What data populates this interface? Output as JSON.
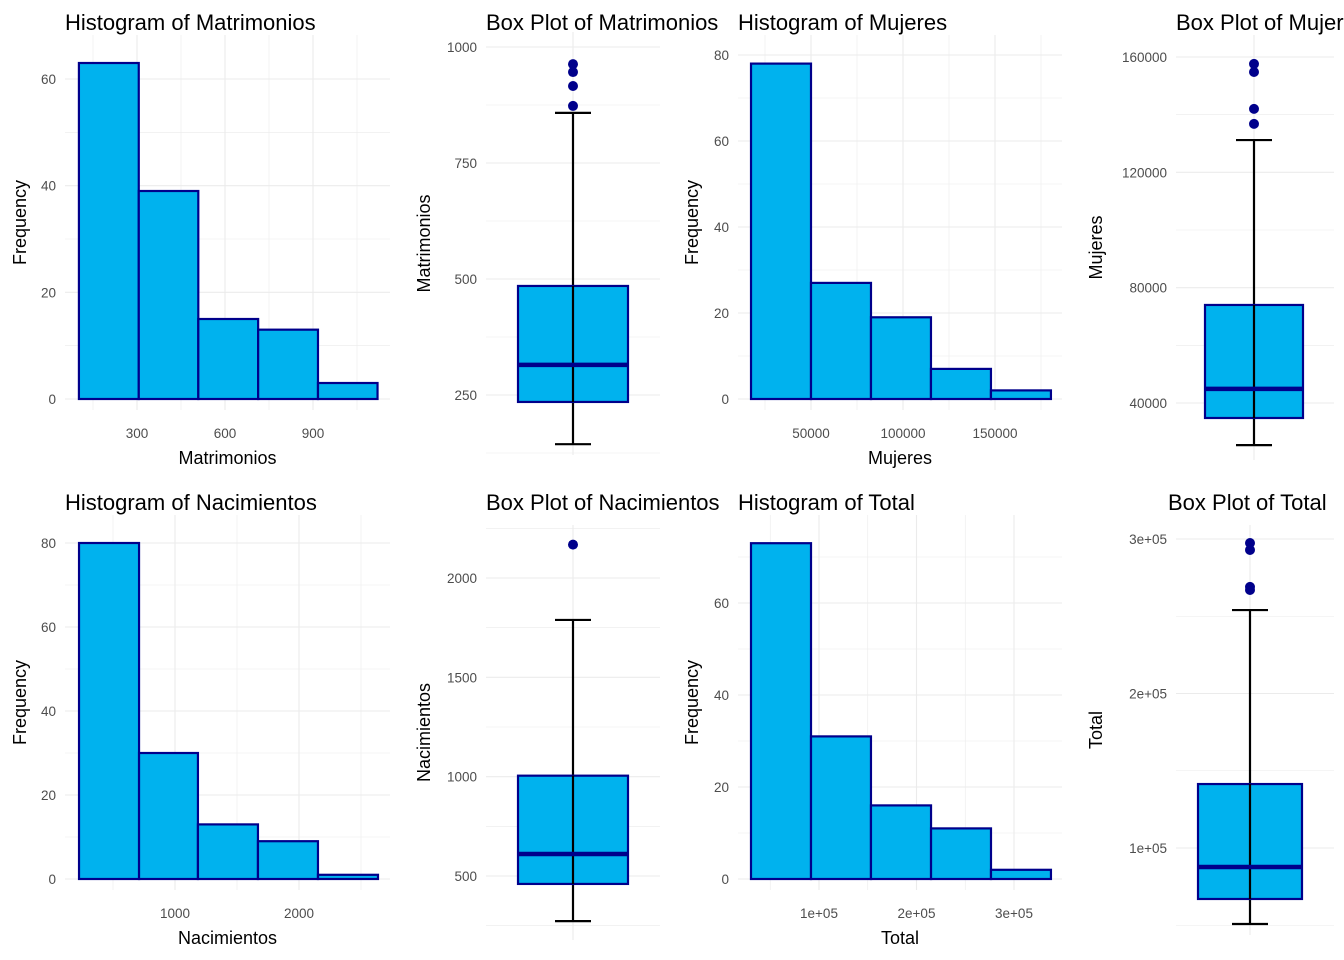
{
  "colors": {
    "fill": "#00B2EE",
    "outline": "#00008B",
    "whisker": "#000000",
    "outlier": "#00008B",
    "grid": "#EBEBEB"
  },
  "chart_data": [
    {
      "type": "histogram",
      "title": "Histogram of Matrimonios",
      "xlabel": "Matrimonios",
      "ylabel": "Frequency",
      "bin_edges": [
        102,
        306,
        509,
        713,
        917,
        1120
      ],
      "counts": [
        63,
        39,
        15,
        13,
        3
      ],
      "x_ticks": [
        300,
        600,
        900
      ],
      "x_tick_labels": [
        "300",
        "600",
        "900"
      ],
      "y_ticks": [
        0,
        20,
        40,
        60
      ],
      "y_tick_labels": [
        "0",
        "20",
        "40",
        "60"
      ],
      "grid": true
    },
    {
      "type": "box",
      "title": "Box Plot of Matrimonios",
      "xlabel": "",
      "ylabel": "Matrimonios",
      "whisker_low": 144,
      "q1": 235,
      "median": 315,
      "q3": 485,
      "whisker_high": 858,
      "outliers": [
        873,
        916,
        946,
        963
      ],
      "y_ticks": [
        250,
        500,
        750,
        1000
      ],
      "y_tick_labels": [
        "250",
        "500",
        "750",
        "1000"
      ],
      "grid": true
    },
    {
      "type": "histogram",
      "title": "Histogram of Mujeres",
      "xlabel": "Mujeres",
      "ylabel": "Frequency",
      "bin_edges": [
        17400,
        50000,
        82600,
        115200,
        147800,
        180400
      ],
      "counts": [
        78,
        27,
        19,
        7,
        2
      ],
      "x_ticks": [
        50000,
        100000,
        150000
      ],
      "x_tick_labels": [
        "50000",
        "100000",
        "150000"
      ],
      "y_ticks": [
        0,
        20,
        40,
        60,
        80
      ],
      "y_tick_labels": [
        "0",
        "20",
        "40",
        "60",
        "80"
      ],
      "grid": true
    },
    {
      "type": "box",
      "title": "Box Plot of Mujeres",
      "xlabel": "",
      "ylabel": "Mujeres",
      "whisker_low": 25400,
      "q1": 34800,
      "median": 44900,
      "q3": 74000,
      "whisker_high": 131200,
      "outliers": [
        136800,
        142000,
        154800,
        157600
      ],
      "y_ticks": [
        40000,
        80000,
        120000,
        160000
      ],
      "y_tick_labels": [
        "40000",
        "80000",
        "120000",
        "160000"
      ],
      "grid": true
    },
    {
      "type": "histogram",
      "title": "Histogram of Nacimientos",
      "xlabel": "Nacimientos",
      "ylabel": "Frequency",
      "bin_edges": [
        226,
        710,
        1185,
        1669,
        2153,
        2637
      ],
      "counts": [
        80,
        30,
        13,
        9,
        1
      ],
      "x_ticks": [
        1000,
        2000
      ],
      "x_tick_labels": [
        "1000",
        "2000"
      ],
      "y_ticks": [
        0,
        20,
        40,
        60,
        80
      ],
      "y_tick_labels": [
        "0",
        "20",
        "40",
        "60",
        "80"
      ],
      "grid": true
    },
    {
      "type": "box",
      "title": "Box Plot of Nacimientos",
      "xlabel": "",
      "ylabel": "Nacimientos",
      "whisker_low": 273,
      "q1": 460,
      "median": 611,
      "q3": 1005,
      "whisker_high": 1789,
      "outliers": [
        2168
      ],
      "y_ticks": [
        500,
        1000,
        1500,
        2000
      ],
      "y_tick_labels": [
        "500",
        "1000",
        "1500",
        "2000"
      ],
      "grid": true
    },
    {
      "type": "histogram",
      "title": "Histogram of Total",
      "xlabel": "Total",
      "ylabel": "Frequency",
      "bin_edges": [
        30250,
        91800,
        153300,
        214900,
        276400,
        337900
      ],
      "counts": [
        73,
        31,
        16,
        11,
        2
      ],
      "x_ticks": [
        100000,
        200000,
        300000
      ],
      "x_tick_labels": [
        "1e+05",
        "2e+05",
        "3e+05"
      ],
      "y_ticks": [
        0,
        20,
        40,
        60
      ],
      "y_tick_labels": [
        "0",
        "20",
        "40",
        "60"
      ],
      "grid": true
    },
    {
      "type": "box",
      "title": "Box Plot of Total",
      "xlabel": "",
      "ylabel": "Total",
      "whisker_low": 50800,
      "q1": 67000,
      "median": 87700,
      "q3": 141400,
      "whisker_high": 254000,
      "outliers": [
        267000,
        269000,
        292900,
        297400
      ],
      "y_ticks": [
        100000,
        200000,
        300000
      ],
      "y_tick_labels": [
        "1e+05",
        "2e+05",
        "3e+05"
      ],
      "grid": true
    }
  ]
}
